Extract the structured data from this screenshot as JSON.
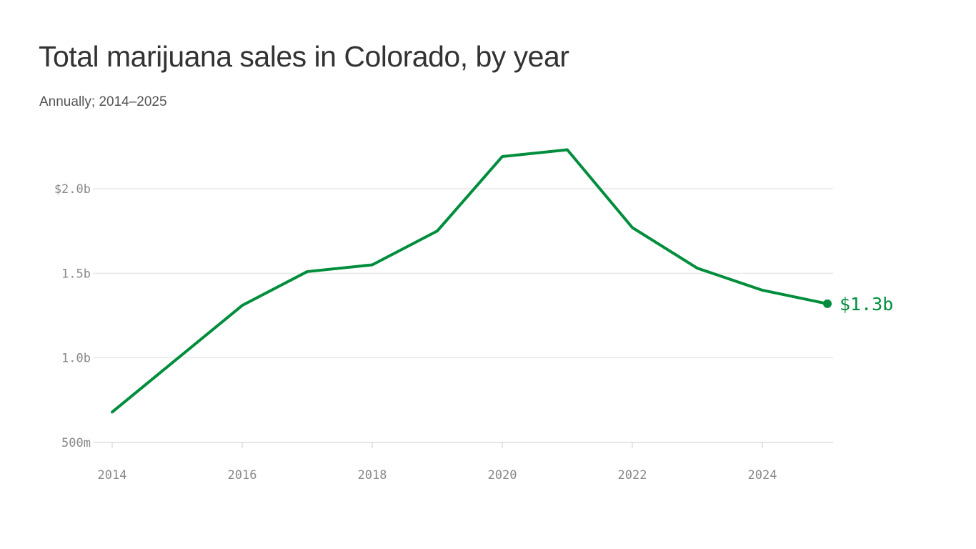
{
  "chart_data": {
    "type": "line",
    "title": "Total marijuana sales in Colorado, by year",
    "subtitle": "Annually; 2014–2025",
    "xlabel": "",
    "ylabel": "",
    "x": [
      2014,
      2015,
      2016,
      2017,
      2018,
      2019,
      2020,
      2021,
      2022,
      2023,
      2024,
      2025
    ],
    "series": [
      {
        "values": [
          0.68,
          0.995,
          1.31,
          1.51,
          1.55,
          1.75,
          2.19,
          2.23,
          1.77,
          1.53,
          1.4,
          1.32
        ],
        "color": "#008d3c"
      }
    ],
    "ylim": [
      0.5,
      2.3
    ],
    "yticks": [
      {
        "value": 0.5,
        "label": "500m"
      },
      {
        "value": 1.0,
        "label": "1.0b"
      },
      {
        "value": 1.5,
        "label": "1.5b"
      },
      {
        "value": 2.0,
        "label": "$2.0b"
      }
    ],
    "xticks": [
      {
        "value": 2014,
        "label": "2014"
      },
      {
        "value": 2016,
        "label": "2016"
      },
      {
        "value": 2018,
        "label": "2018"
      },
      {
        "value": 2020,
        "label": "2020"
      },
      {
        "value": 2022,
        "label": "2022"
      },
      {
        "value": 2024,
        "label": "2024"
      }
    ],
    "end_label": "$1.3b",
    "grid": "horizontal",
    "colors": {
      "line": "#008d3c",
      "grid": "#dddddd",
      "axis_text": "#888888"
    }
  }
}
